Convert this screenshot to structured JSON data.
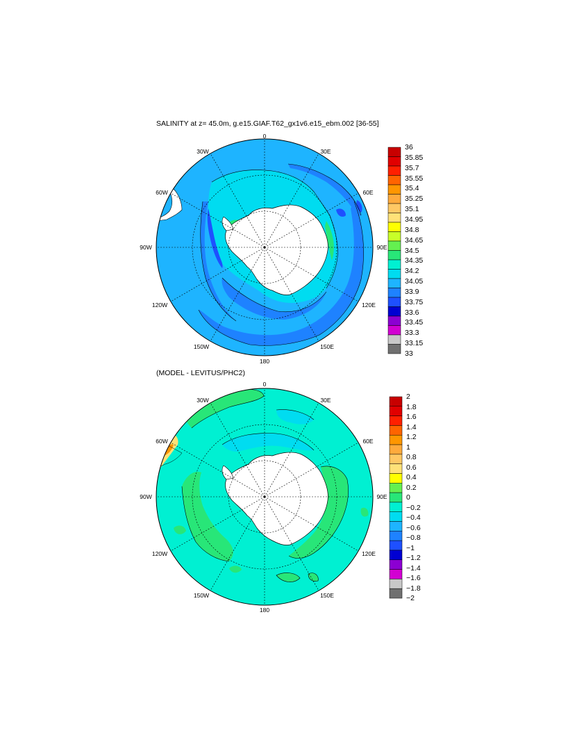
{
  "panels": [
    {
      "title": "SALINITY at z=  45.0m, g.e15.GIAF.T62_gx1v6.e15_ebm.002 [36-55]",
      "lon_labels": [
        "0",
        "30E",
        "60E",
        "90E",
        "120E",
        "150E",
        "180",
        "150W",
        "120W",
        "90W",
        "60W",
        "30W"
      ],
      "colorbar": {
        "labels": [
          "36",
          "35.85",
          "35.7",
          "35.55",
          "35.4",
          "35.25",
          "35.1",
          "34.95",
          "34.8",
          "34.65",
          "34.5",
          "34.35",
          "34.2",
          "34.05",
          "33.9",
          "33.75",
          "33.6",
          "33.45",
          "33.3",
          "33.15",
          "33"
        ],
        "colors": [
          "#c80000",
          "#e10000",
          "#ff2000",
          "#ff6400",
          "#ff9600",
          "#ffaa3c",
          "#ffc864",
          "#ffe178",
          "#ffff00",
          "#c8ff28",
          "#64f050",
          "#28e678",
          "#00f0d2",
          "#00dcf0",
          "#1eb4ff",
          "#1e82ff",
          "#1e50ff",
          "#0000d2",
          "#8c00d2",
          "#d200d2",
          "#c8c8c8",
          "#707070"
        ]
      }
    },
    {
      "title": "(MODEL - LEVITUS/PHC2)",
      "lon_labels": [
        "0",
        "30E",
        "60E",
        "90E",
        "120E",
        "150E",
        "180",
        "150W",
        "120W",
        "90W",
        "60W",
        "30W"
      ],
      "colorbar": {
        "labels": [
          "2",
          "1.8",
          "1.6",
          "1.4",
          "1.2",
          "1",
          "0.8",
          "0.6",
          "0.4",
          "0.2",
          "0",
          "−0.2",
          "−0.4",
          "−0.6",
          "−0.8",
          "−1",
          "−1.2",
          "−1.4",
          "−1.6",
          "−1.8",
          "−2"
        ],
        "colors": [
          "#c80000",
          "#e10000",
          "#ff2000",
          "#ff6400",
          "#ff9600",
          "#ffaa3c",
          "#ffc864",
          "#ffe178",
          "#ffff00",
          "#64f050",
          "#28e678",
          "#00f0d2",
          "#00dcf0",
          "#1eb4ff",
          "#1e82ff",
          "#1e50ff",
          "#0000d2",
          "#8c00d2",
          "#d200d2",
          "#c8c8c8",
          "#707070"
        ]
      }
    }
  ]
}
